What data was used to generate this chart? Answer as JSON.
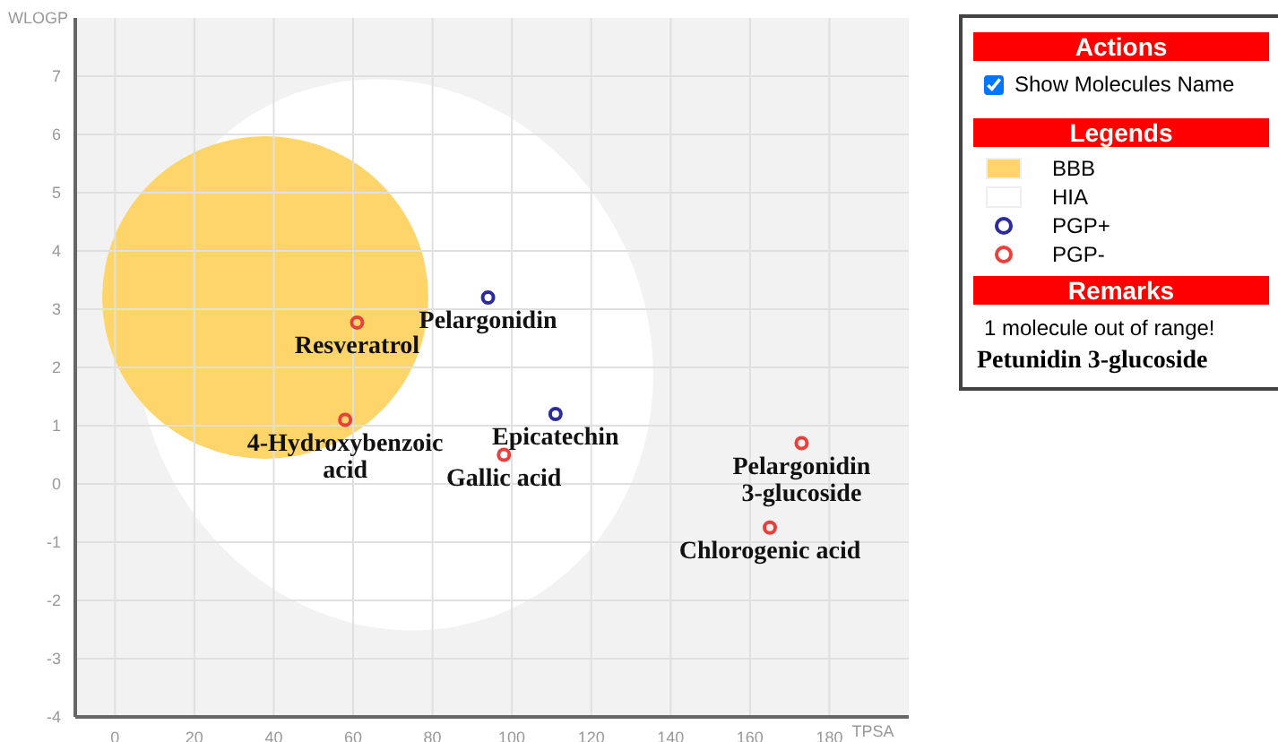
{
  "chart_data": {
    "type": "scatter",
    "xlabel": "TPSA",
    "ylabel": "WLOGP",
    "xlim": [
      -10,
      200
    ],
    "xticks": [
      0,
      20,
      40,
      60,
      80,
      100,
      120,
      140,
      160,
      180
    ],
    "ylim": [
      -4,
      8
    ],
    "yticks": [
      -4,
      -3,
      -2,
      -1,
      0,
      1,
      2,
      3,
      4,
      5,
      6,
      7
    ],
    "grid": true,
    "legend": "right",
    "marker": "circle",
    "series": [
      {
        "name": "PGP+",
        "color": "#2b2b9c",
        "x": [
          94,
          111
        ],
        "values": [
          3.2,
          1.2
        ]
      },
      {
        "name": "PGP-",
        "color": "#e8413c",
        "x": [
          61,
          58,
          98,
          173,
          165
        ],
        "values": [
          2.77,
          1.1,
          0.5,
          0.7,
          -0.75
        ]
      }
    ],
    "annotations": [
      "Actions",
      "Show Molecules Name",
      "Legends",
      "BBB",
      "HIA",
      "Remarks",
      "1 molecule out of range!",
      "Petunidin 3-glucoside",
      {
        "text": "Resveratrol",
        "x": 61,
        "y": 2.77
      },
      {
        "text": "Pelargonidin",
        "x": 94,
        "y": 3.2
      },
      {
        "text": "4-Hydroxybenzoic\nacid",
        "x": 58,
        "y": 1.1
      },
      {
        "text": "Epicatechin",
        "x": 111,
        "y": 1.2
      },
      {
        "text": "Gallic acid",
        "x": 98,
        "y": 0.5
      },
      {
        "text": "Pelargonidin\n3-glucoside",
        "x": 173,
        "y": 0.7
      },
      {
        "text": "Chlorogenic acid",
        "x": 165,
        "y": -0.75
      }
    ]
  }
}
